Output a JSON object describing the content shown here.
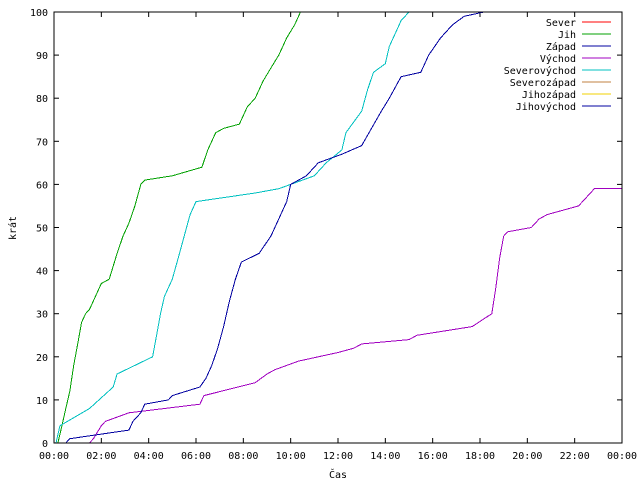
{
  "chart_data": {
    "type": "line",
    "xlabel": "Čas",
    "ylabel": "krát",
    "xlim": [
      "00:00",
      "24:00"
    ],
    "ylim": [
      0,
      100
    ],
    "x_ticks": [
      "00:00",
      "02:00",
      "04:00",
      "06:00",
      "08:00",
      "10:00",
      "12:00",
      "14:00",
      "16:00",
      "18:00",
      "20:00",
      "22:00",
      "00:00"
    ],
    "y_ticks": [
      0,
      10,
      20,
      30,
      40,
      50,
      60,
      70,
      80,
      90,
      100
    ],
    "grid": false,
    "legend_position": "top-right",
    "series": [
      {
        "name": "Sever",
        "color": "#ff0000",
        "points": []
      },
      {
        "name": "Jih",
        "color": "#00a000",
        "points": [
          [
            "00:10",
            0
          ],
          [
            "00:20",
            4
          ],
          [
            "00:30",
            8
          ],
          [
            "00:40",
            12
          ],
          [
            "00:50",
            18
          ],
          [
            "01:00",
            23
          ],
          [
            "01:10",
            28
          ],
          [
            "01:20",
            30
          ],
          [
            "01:30",
            31
          ],
          [
            "01:45",
            34
          ],
          [
            "02:00",
            37
          ],
          [
            "02:20",
            38
          ],
          [
            "02:40",
            44
          ],
          [
            "02:55",
            48
          ],
          [
            "03:10",
            51
          ],
          [
            "03:25",
            55
          ],
          [
            "03:40",
            60
          ],
          [
            "03:50",
            61
          ],
          [
            "05:00",
            62
          ],
          [
            "06:15",
            64
          ],
          [
            "06:30",
            68
          ],
          [
            "06:50",
            72
          ],
          [
            "07:10",
            73
          ],
          [
            "07:50",
            74
          ],
          [
            "08:10",
            78
          ],
          [
            "08:30",
            80
          ],
          [
            "08:50",
            84
          ],
          [
            "09:10",
            87
          ],
          [
            "09:30",
            90
          ],
          [
            "09:50",
            94
          ],
          [
            "10:10",
            97
          ],
          [
            "10:25",
            100
          ]
        ]
      },
      {
        "name": "Západ",
        "color": "#0000a0",
        "points": []
      },
      {
        "name": "Východ",
        "color": "#a000c0",
        "points": [
          [
            "01:30",
            0
          ],
          [
            "01:40",
            1
          ],
          [
            "02:00",
            4
          ],
          [
            "02:10",
            5
          ],
          [
            "03:10",
            7
          ],
          [
            "06:10",
            9
          ],
          [
            "06:20",
            11
          ],
          [
            "08:30",
            14
          ],
          [
            "09:00",
            16
          ],
          [
            "09:20",
            17
          ],
          [
            "10:20",
            19
          ],
          [
            "12:00",
            21
          ],
          [
            "12:40",
            22
          ],
          [
            "13:00",
            23
          ],
          [
            "15:00",
            24
          ],
          [
            "15:20",
            25
          ],
          [
            "17:40",
            27
          ],
          [
            "18:30",
            30
          ],
          [
            "18:40",
            36
          ],
          [
            "18:50",
            43
          ],
          [
            "19:00",
            48
          ],
          [
            "19:10",
            49
          ],
          [
            "20:10",
            50
          ],
          [
            "20:30",
            52
          ],
          [
            "20:50",
            53
          ],
          [
            "22:10",
            55
          ],
          [
            "22:30",
            57
          ],
          [
            "22:50",
            59
          ],
          [
            "24:00",
            59
          ]
        ]
      },
      {
        "name": "Severovýchod",
        "color": "#00c0c0",
        "points": [
          [
            "00:05",
            0
          ],
          [
            "00:15",
            4
          ],
          [
            "01:30",
            8
          ],
          [
            "02:30",
            13
          ],
          [
            "02:40",
            16
          ],
          [
            "04:10",
            20
          ],
          [
            "04:20",
            25
          ],
          [
            "04:30",
            30
          ],
          [
            "04:40",
            34
          ],
          [
            "05:00",
            38
          ],
          [
            "05:15",
            43
          ],
          [
            "05:30",
            48
          ],
          [
            "05:45",
            53
          ],
          [
            "06:00",
            56
          ],
          [
            "08:30",
            58
          ],
          [
            "09:30",
            59
          ],
          [
            "10:00",
            60
          ],
          [
            "11:00",
            62
          ],
          [
            "11:30",
            65
          ],
          [
            "12:10",
            68
          ],
          [
            "12:20",
            72
          ],
          [
            "13:00",
            77
          ],
          [
            "13:15",
            82
          ],
          [
            "13:30",
            86
          ],
          [
            "14:00",
            88
          ],
          [
            "14:10",
            92
          ],
          [
            "14:25",
            95
          ],
          [
            "14:40",
            98
          ],
          [
            "15:00",
            100
          ]
        ]
      },
      {
        "name": "Severozápad",
        "color": "#c08040",
        "points": []
      },
      {
        "name": "Jihozápad",
        "color": "#f0d000",
        "points": []
      },
      {
        "name": "Jihovýchod",
        "color": "#0000a0",
        "points": [
          [
            "00:30",
            0
          ],
          [
            "00:40",
            1
          ],
          [
            "03:10",
            3
          ],
          [
            "03:20",
            5
          ],
          [
            "03:40",
            7
          ],
          [
            "03:50",
            9
          ],
          [
            "04:50",
            10
          ],
          [
            "05:00",
            11
          ],
          [
            "06:10",
            13
          ],
          [
            "06:25",
            15
          ],
          [
            "06:40",
            18
          ],
          [
            "06:55",
            22
          ],
          [
            "07:10",
            27
          ],
          [
            "07:25",
            33
          ],
          [
            "07:40",
            38
          ],
          [
            "07:55",
            42
          ],
          [
            "08:40",
            44
          ],
          [
            "09:10",
            48
          ],
          [
            "09:30",
            52
          ],
          [
            "09:50",
            56
          ],
          [
            "10:00",
            60
          ],
          [
            "10:40",
            62
          ],
          [
            "11:10",
            65
          ],
          [
            "12:10",
            67
          ],
          [
            "13:00",
            69
          ],
          [
            "13:25",
            73
          ],
          [
            "13:50",
            77
          ],
          [
            "14:10",
            80
          ],
          [
            "14:40",
            85
          ],
          [
            "15:30",
            86
          ],
          [
            "15:50",
            90
          ],
          [
            "16:20",
            94
          ],
          [
            "16:50",
            97
          ],
          [
            "17:20",
            99
          ],
          [
            "18:10",
            100
          ]
        ]
      }
    ]
  }
}
